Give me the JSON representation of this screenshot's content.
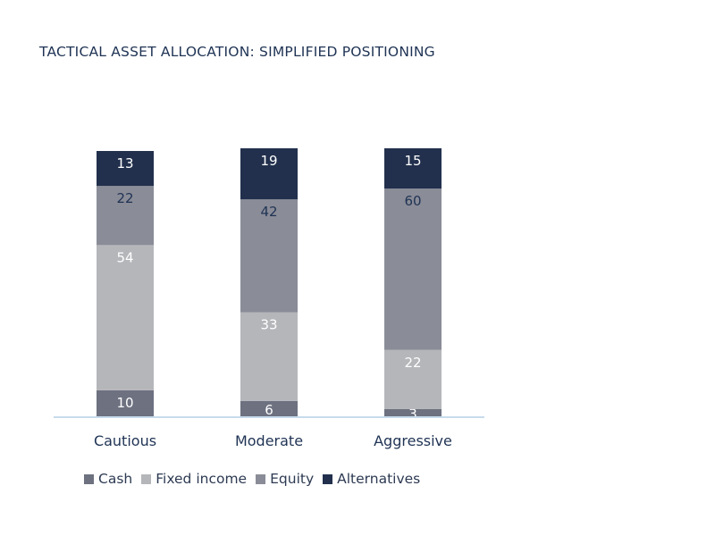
{
  "chart_data": {
    "type": "bar",
    "stacked": true,
    "title": "TACTICAL ASSET ALLOCATION: SIMPLIFIED POSITIONING",
    "categories": [
      "Cautious",
      "Moderate",
      "Aggressive"
    ],
    "series": [
      {
        "name": "Cash",
        "values": [
          10,
          6,
          3
        ],
        "color": "#6d7180",
        "label_color": "#ffffff"
      },
      {
        "name": "Fixed income",
        "values": [
          54,
          33,
          22
        ],
        "color": "#b5b6ba",
        "label_color": "#ffffff"
      },
      {
        "name": "Equity",
        "values": [
          22,
          42,
          60
        ],
        "color": "#8a8c97",
        "label_color": "#1f3354"
      },
      {
        "name": "Alternatives",
        "values": [
          13,
          19,
          15
        ],
        "color": "#22304d",
        "label_color": "#ffffff"
      }
    ],
    "ylim": [
      0,
      100
    ],
    "legend_position": "bottom",
    "grid": false,
    "baseline_color": "#c7dcec"
  }
}
